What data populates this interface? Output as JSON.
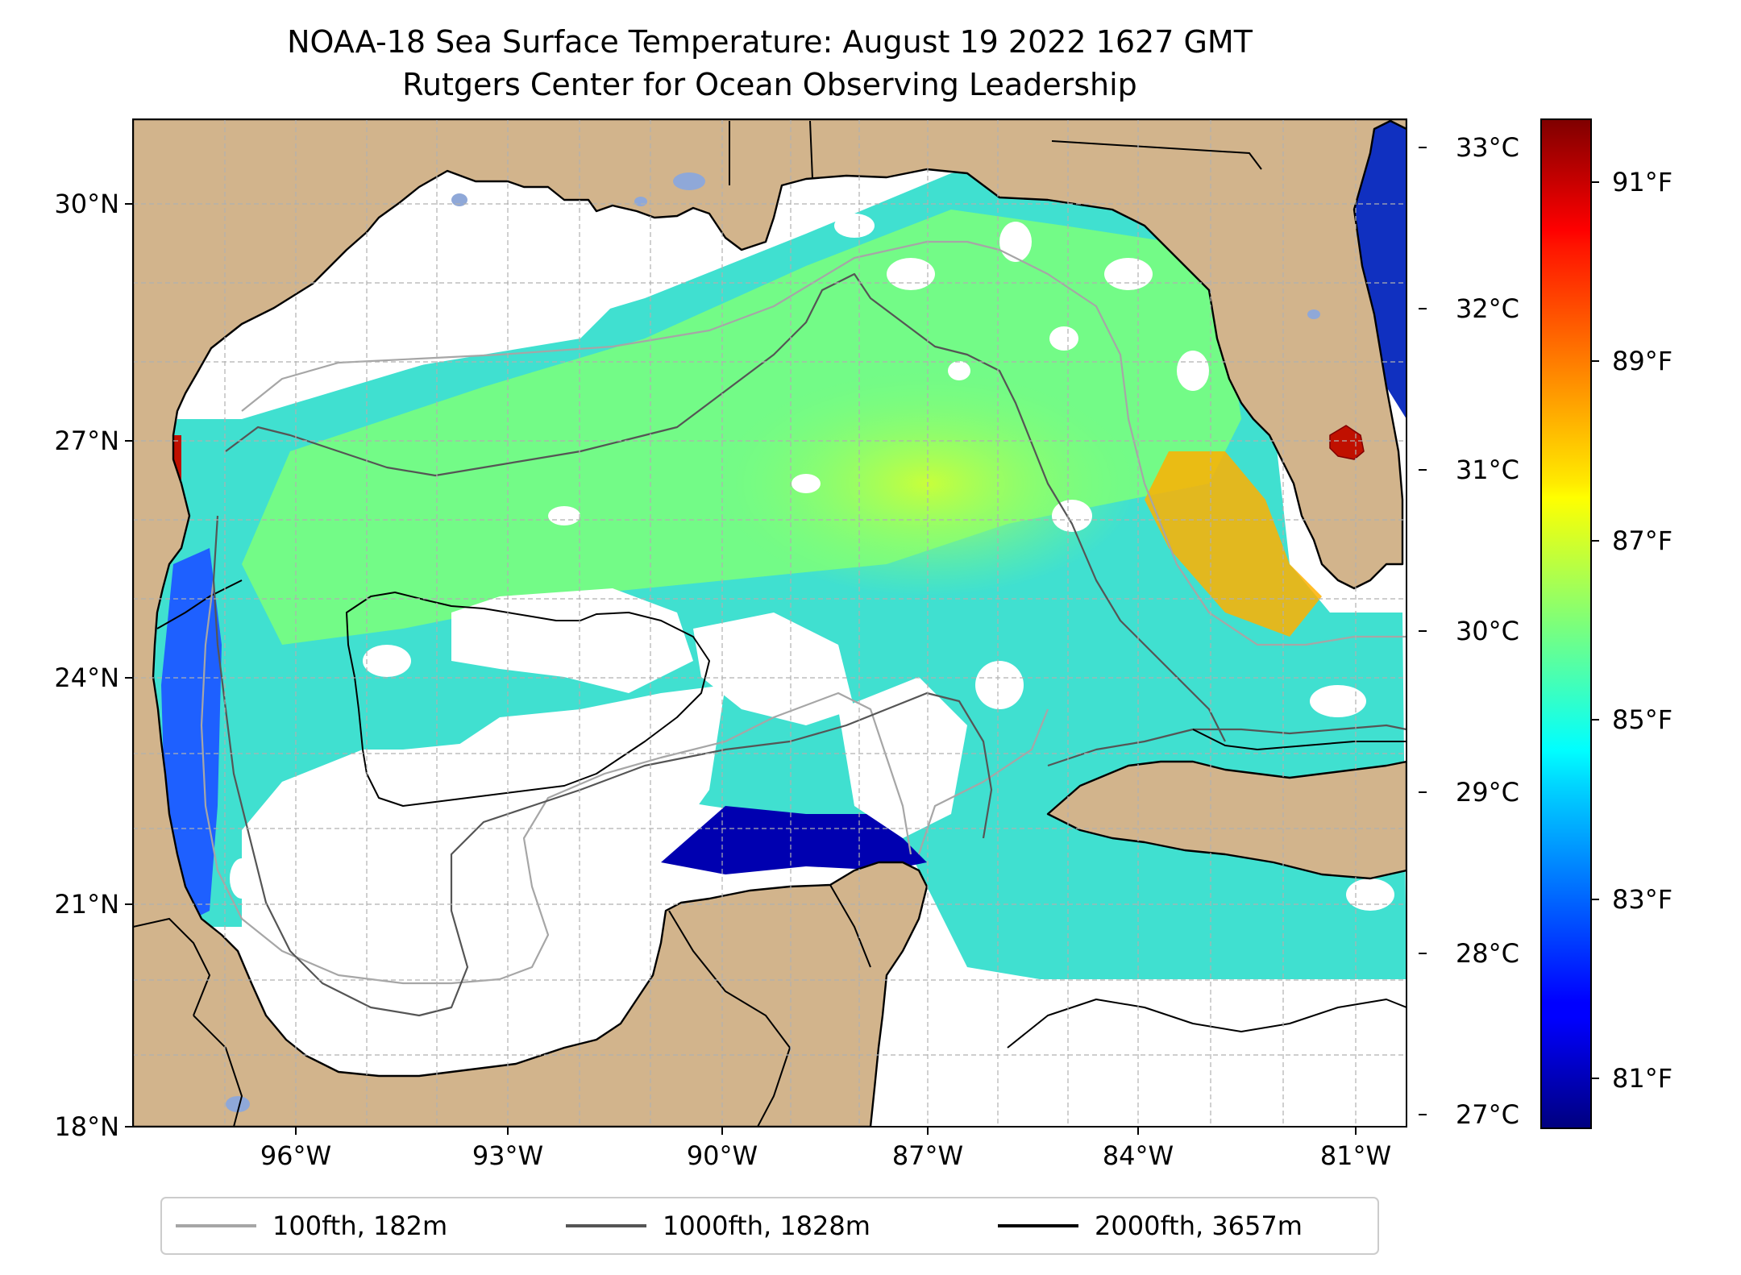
{
  "title": {
    "line1": "NOAA-18 Sea Surface Temperature: August 19 2022 1627 GMT",
    "line2": "Rutgers Center for Ocean Observing Leadership"
  },
  "map": {
    "lat_ticks": [
      "30°N",
      "27°N",
      "24°N",
      "21°N",
      "18°N"
    ],
    "lat_values": [
      30,
      27,
      24,
      21,
      18
    ],
    "lon_ticks": [
      "96°W",
      "93°W",
      "90°W",
      "87°W",
      "84°W",
      "81°W"
    ],
    "lon_values": [
      -96,
      -93,
      -90,
      -87,
      -84,
      -81
    ],
    "lat_range": [
      18,
      31
    ],
    "lon_range": [
      -98.3,
      -80.3
    ],
    "colors": {
      "land": "#d2b48c",
      "coast": "#000000",
      "grid": "#b0b0b0"
    }
  },
  "legend": {
    "items": [
      {
        "label": "100fth, 182m",
        "color": "#a6a6a6"
      },
      {
        "label": "1000fth, 1828m",
        "color": "#555555"
      },
      {
        "label": "2000fth, 3657m",
        "color": "#000000"
      }
    ]
  },
  "colorbar": {
    "celsius_ticks": [
      "33°C",
      "32°C",
      "31°C",
      "30°C",
      "29°C",
      "28°C",
      "27°C"
    ],
    "celsius_values": [
      33,
      32,
      31,
      30,
      29,
      28,
      27
    ],
    "fahrenheit_ticks": [
      "91°F",
      "89°F",
      "87°F",
      "85°F",
      "83°F",
      "81°F"
    ],
    "fahrenheit_values": [
      91,
      89,
      87,
      85,
      83,
      81
    ],
    "range_f": [
      80.2,
      92
    ],
    "colormap": "jet"
  }
}
